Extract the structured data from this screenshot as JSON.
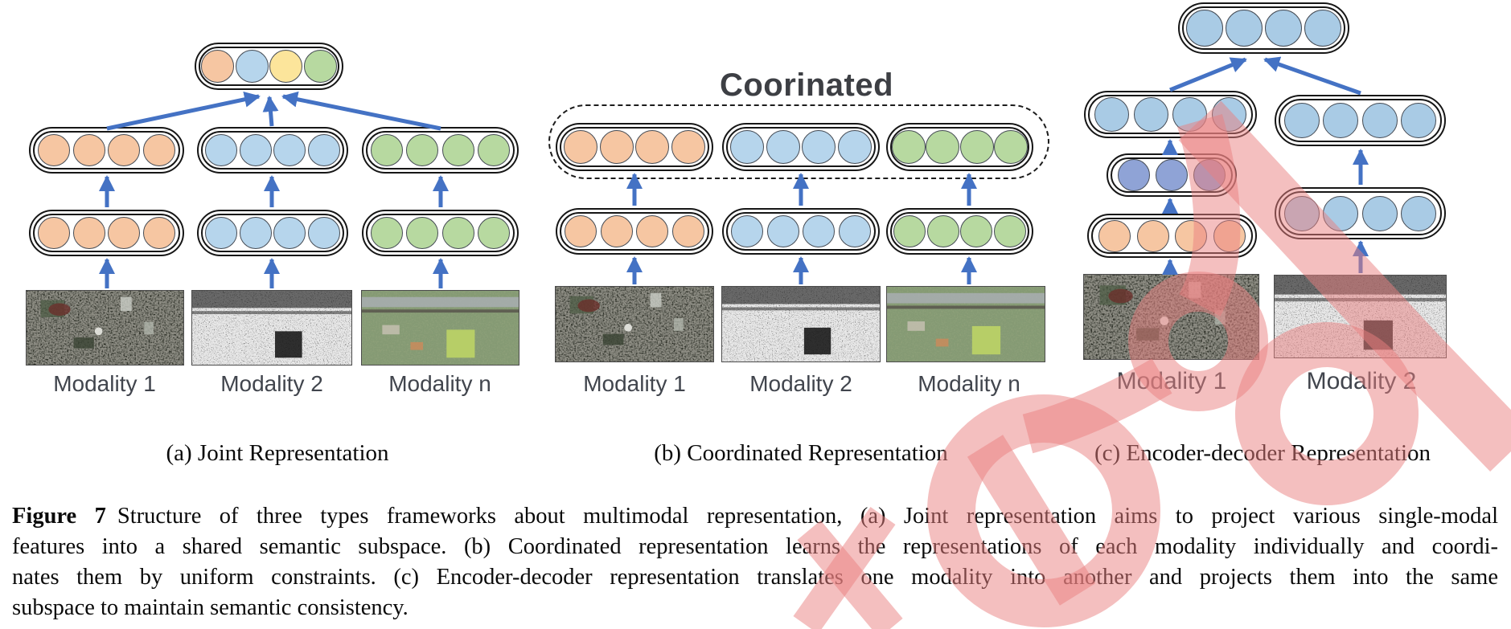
{
  "panels": {
    "a": {
      "subcaption": "(a) Joint Representation",
      "modalities": [
        "Modality 1",
        "Modality 2",
        "Modality n"
      ]
    },
    "b": {
      "title": "Coorinated",
      "subcaption": "(b) Coordinated Representation",
      "modalities": [
        "Modality 1",
        "Modality 2",
        "Modality n"
      ]
    },
    "c": {
      "subcaption": "(c) Encoder-decoder Representation",
      "modalities": [
        "Modality 1",
        "Modality 2"
      ]
    }
  },
  "caption": {
    "label": "Figure 7",
    "lines": [
      "Structure of three types frameworks about multimodal representation, (a) Joint representation aims to project various single-modal",
      "features into a shared semantic subspace. (b) Coordinated representation learns the representations of each modality individually and coordi-",
      "nates them by uniform constraints. (c) Encoder-decoder representation translates one modality into another and projects them into the same",
      "subspace to maintain semantic consistency."
    ]
  },
  "colors": {
    "orange": "#F6C6A2",
    "blue": "#B6D5EC",
    "blue_c": "#A9CBE5",
    "yellow": "#FCE59B",
    "green": "#B7D9A0",
    "purple": "#8FA3D6",
    "arrow": "#4472C4",
    "outline": "#161616",
    "circle_border": "#454b54",
    "label_text": "#41454d",
    "title_text": "#3d3f44",
    "caption_text": "#0a0a0a",
    "watermark": "rgba(233,128,128,0.5)"
  }
}
